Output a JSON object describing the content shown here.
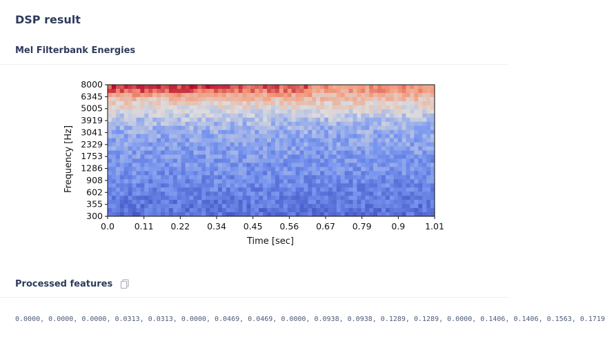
{
  "page": {
    "title": "DSP result",
    "spectrogram_heading": "Mel Filterbank Energies",
    "features_heading": "Processed features",
    "features_values": "0.0000, 0.0000, 0.0000, 0.0313, 0.0313, 0.0000, 0.0469, 0.0469, 0.0000, 0.0938, 0.0938, 0.1289, 0.1289, 0.0000, 0.1406, 0.1406, 0.1563, 0.1719"
  },
  "icons": {
    "copy": "copy-icon"
  },
  "colors": {
    "heading": "#2e3b5c",
    "low": "#3b4cc0",
    "mid": "#dddddd",
    "high": "#b40426"
  },
  "chart_data": {
    "type": "heatmap",
    "title": "",
    "xlabel": "Time [sec]",
    "ylabel": "Frequency [Hz]",
    "x_ticks": [
      "0.0",
      "0.11",
      "0.22",
      "0.34",
      "0.45",
      "0.56",
      "0.67",
      "0.79",
      "0.9",
      "1.01"
    ],
    "y_ticks": [
      "8000",
      "6345",
      "5005",
      "3919",
      "3041",
      "2329",
      "1753",
      "1286",
      "908",
      "602",
      "355",
      "300"
    ],
    "xlim": [
      0,
      1.01
    ],
    "colormap": "coolwarm",
    "rows": 32,
    "cols": 80,
    "band_profile": [
      0.86,
      0.8,
      0.7,
      0.62,
      0.56,
      0.52,
      0.48,
      0.44,
      0.4,
      0.37,
      0.35,
      0.33,
      0.31,
      0.3,
      0.29,
      0.28,
      0.27,
      0.26,
      0.25,
      0.24,
      0.24,
      0.23,
      0.22,
      0.21,
      0.2,
      0.19,
      0.18,
      0.17,
      0.16,
      0.15,
      0.14,
      0.13
    ]
  }
}
